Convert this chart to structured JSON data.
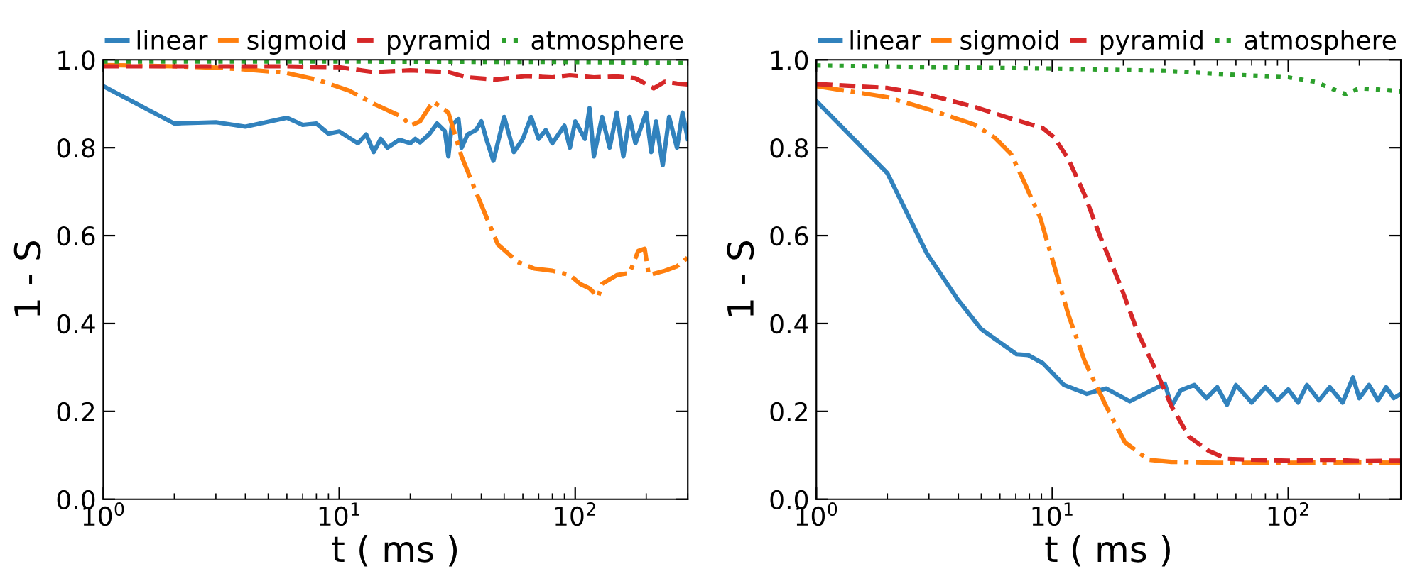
{
  "chart_data": [
    {
      "type": "line",
      "xlabel": "t ( ms )",
      "ylabel": "1 - S",
      "log": "x",
      "grid": false,
      "legend": "top",
      "xlim": [
        1,
        300
      ],
      "ylim": [
        0,
        1
      ],
      "xticks": [
        {
          "value": 1,
          "label": "10$^{0}$"
        },
        {
          "value": 10,
          "label": "10$^{1}$"
        },
        {
          "value": 100,
          "label": "10$^{2}$"
        }
      ],
      "yticks": [
        {
          "value": 0,
          "label": "0.0"
        },
        {
          "value": 0.2,
          "label": "0.2"
        },
        {
          "value": 0.4,
          "label": "0.4"
        },
        {
          "value": 0.6,
          "label": "0.6"
        },
        {
          "value": 0.8,
          "label": "0.8"
        },
        {
          "value": 1,
          "label": "1.0"
        }
      ],
      "series": [
        {
          "name": "linear",
          "color": "#3182bd",
          "line_style": "solid",
          "x": [
            1,
            2,
            3,
            4,
            6,
            7,
            8,
            9,
            10,
            12,
            13,
            14,
            15,
            16,
            18,
            20,
            21,
            22,
            24,
            26,
            28,
            29,
            30,
            32,
            33,
            35,
            38,
            40,
            42,
            45,
            50,
            55,
            60,
            65,
            70,
            75,
            80,
            90,
            95,
            100,
            110,
            115,
            120,
            130,
            140,
            150,
            160,
            170,
            180,
            200,
            210,
            220,
            235,
            250,
            270,
            285,
            300
          ],
          "values": [
            0.94,
            0.855,
            0.858,
            0.848,
            0.868,
            0.852,
            0.855,
            0.832,
            0.837,
            0.81,
            0.83,
            0.79,
            0.82,
            0.8,
            0.818,
            0.81,
            0.82,
            0.812,
            0.83,
            0.855,
            0.838,
            0.78,
            0.852,
            0.865,
            0.8,
            0.83,
            0.84,
            0.86,
            0.82,
            0.77,
            0.87,
            0.79,
            0.82,
            0.87,
            0.82,
            0.84,
            0.81,
            0.85,
            0.8,
            0.86,
            0.82,
            0.89,
            0.78,
            0.87,
            0.8,
            0.88,
            0.78,
            0.87,
            0.81,
            0.88,
            0.79,
            0.86,
            0.76,
            0.87,
            0.8,
            0.88,
            0.82
          ]
        },
        {
          "name": "sigmoid",
          "color": "#ff7f0e",
          "line_style": "dashdot",
          "x": [
            1,
            2,
            3,
            4,
            6,
            8,
            11,
            14,
            18.5,
            20,
            22,
            25,
            29,
            33,
            40,
            47,
            57,
            67,
            80,
            95,
            105,
            115,
            125,
            130,
            150,
            170,
            185,
            197,
            205,
            240,
            270,
            300
          ],
          "values": [
            0.988,
            0.985,
            0.982,
            0.978,
            0.97,
            0.955,
            0.93,
            0.9,
            0.87,
            0.85,
            0.86,
            0.905,
            0.88,
            0.78,
            0.67,
            0.58,
            0.54,
            0.525,
            0.52,
            0.51,
            0.49,
            0.48,
            0.46,
            0.49,
            0.51,
            0.515,
            0.565,
            0.57,
            0.51,
            0.52,
            0.53,
            0.55
          ]
        },
        {
          "name": "pyramid",
          "color": "#d62728",
          "line_style": "dashed",
          "x": [
            1,
            3,
            6,
            10,
            14,
            20,
            29,
            35,
            46,
            62,
            80,
            95,
            120,
            150,
            180,
            215,
            240,
            270,
            300
          ],
          "values": [
            0.985,
            0.985,
            0.985,
            0.983,
            0.972,
            0.976,
            0.972,
            0.96,
            0.955,
            0.963,
            0.96,
            0.965,
            0.96,
            0.962,
            0.958,
            0.935,
            0.95,
            0.946,
            0.944
          ]
        },
        {
          "name": "atmosphere",
          "color": "#2ca02c",
          "line_style": "dotted",
          "x": [
            1,
            10,
            100,
            300
          ],
          "values": [
            0.996,
            0.996,
            0.995,
            0.993
          ]
        }
      ]
    },
    {
      "type": "line",
      "xlabel": "t ( ms )",
      "ylabel": "1 - S",
      "log": "x",
      "grid": false,
      "legend": "top",
      "xlim": [
        1,
        300
      ],
      "ylim": [
        0,
        1
      ],
      "xticks": [
        {
          "value": 1,
          "label": "10$^{0}$"
        },
        {
          "value": 10,
          "label": "10$^{1}$"
        },
        {
          "value": 100,
          "label": "10$^{2}$"
        }
      ],
      "yticks": [
        {
          "value": 0,
          "label": "0.0"
        },
        {
          "value": 0.2,
          "label": "0.2"
        },
        {
          "value": 0.4,
          "label": "0.4"
        },
        {
          "value": 0.6,
          "label": "0.6"
        },
        {
          "value": 0.8,
          "label": "0.8"
        },
        {
          "value": 1,
          "label": "1.0"
        }
      ],
      "series": [
        {
          "name": "linear",
          "color": "#3182bd",
          "line_style": "solid",
          "x": [
            1,
            2,
            2.95,
            3.97,
            5,
            7.05,
            7.9,
            9.1,
            11.2,
            14,
            16.9,
            21.3,
            24.4,
            30,
            32,
            35,
            40,
            45,
            50,
            55,
            60,
            70,
            80,
            90,
            100,
            110,
            120,
            135,
            150,
            170,
            188,
            200,
            220,
            240,
            260,
            280,
            300
          ],
          "values": [
            0.906,
            0.742,
            0.558,
            0.455,
            0.387,
            0.33,
            0.328,
            0.31,
            0.26,
            0.24,
            0.252,
            0.223,
            0.239,
            0.263,
            0.212,
            0.248,
            0.26,
            0.23,
            0.255,
            0.215,
            0.26,
            0.22,
            0.255,
            0.225,
            0.25,
            0.22,
            0.26,
            0.225,
            0.255,
            0.22,
            0.277,
            0.23,
            0.26,
            0.225,
            0.255,
            0.23,
            0.24
          ]
        },
        {
          "name": "sigmoid",
          "color": "#ff7f0e",
          "line_style": "dashdot",
          "x": [
            1,
            2,
            2.95,
            4.66,
            5.7,
            6.7,
            7.7,
            8.9,
            10.2,
            11.7,
            13.7,
            16.9,
            20.3,
            25.5,
            32,
            50,
            100,
            200,
            300
          ],
          "values": [
            0.94,
            0.915,
            0.888,
            0.853,
            0.823,
            0.785,
            0.715,
            0.64,
            0.53,
            0.42,
            0.315,
            0.212,
            0.13,
            0.09,
            0.085,
            0.083,
            0.083,
            0.084,
            0.083
          ]
        },
        {
          "name": "pyramid",
          "color": "#d62728",
          "line_style": "dashed",
          "x": [
            1,
            2,
            3,
            4.66,
            6.7,
            8.2,
            9.1,
            10.2,
            11.7,
            13.7,
            16,
            19.4,
            23,
            27.5,
            32,
            38,
            46,
            55,
            70,
            100,
            150,
            200,
            300
          ],
          "values": [
            0.945,
            0.936,
            0.92,
            0.893,
            0.866,
            0.852,
            0.845,
            0.823,
            0.774,
            0.693,
            0.596,
            0.488,
            0.38,
            0.293,
            0.212,
            0.142,
            0.11,
            0.092,
            0.09,
            0.088,
            0.09,
            0.087,
            0.088
          ]
        },
        {
          "name": "atmosphere",
          "color": "#2ca02c",
          "line_style": "dotted",
          "x": [
            1,
            10,
            30,
            50,
            100,
            130,
            160,
            175,
            200,
            250,
            300
          ],
          "values": [
            0.987,
            0.98,
            0.975,
            0.968,
            0.96,
            0.95,
            0.93,
            0.922,
            0.935,
            0.932,
            0.928
          ]
        }
      ]
    }
  ]
}
